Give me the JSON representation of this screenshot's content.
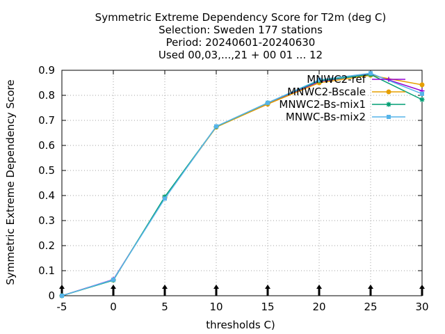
{
  "chart_data": {
    "type": "line",
    "title_lines": [
      "Symmetric Extreme Dependency Score  for T2m (deg C)",
      "Selection: Sweden    177 stations",
      "Period: 20240601-20240630",
      "Used 00,03,...,21 + 00 01 ... 12"
    ],
    "xlabel": "thresholds C)",
    "ylabel": "Symmetric Extreme Dependency Score",
    "x": [
      -5,
      0,
      5,
      10,
      15,
      20,
      25,
      30
    ],
    "xlim": [
      -5,
      30
    ],
    "ylim": [
      0,
      0.9
    ],
    "x_ticks": [
      -5,
      0,
      5,
      10,
      15,
      20,
      25,
      30
    ],
    "y_ticks": [
      0,
      0.1,
      0.2,
      0.3,
      0.4,
      0.5,
      0.6,
      0.7,
      0.8,
      0.9
    ],
    "grid": true,
    "legend_position": "top-right",
    "series": [
      {
        "name": "MNWC2-ref",
        "color": "#9400d3",
        "marker": "plus",
        "values": [
          0,
          0.065,
          0.39,
          0.675,
          0.765,
          0.855,
          0.885,
          0.818
        ]
      },
      {
        "name": "MNWC2-Bscale",
        "color": "#e69f00",
        "marker": "circle",
        "values": [
          0,
          0.063,
          0.392,
          0.673,
          0.765,
          0.85,
          0.88,
          0.842
        ]
      },
      {
        "name": "MNWC2-Bs-mix1",
        "color": "#009e73",
        "marker": "star",
        "values": [
          0,
          0.062,
          0.395,
          0.675,
          0.77,
          0.858,
          0.883,
          0.783
        ]
      },
      {
        "name": "MNWC-Bs-mix2",
        "color": "#56b4e9",
        "marker": "square",
        "values": [
          0,
          0.064,
          0.388,
          0.676,
          0.77,
          0.862,
          0.888,
          0.806
        ]
      }
    ]
  }
}
